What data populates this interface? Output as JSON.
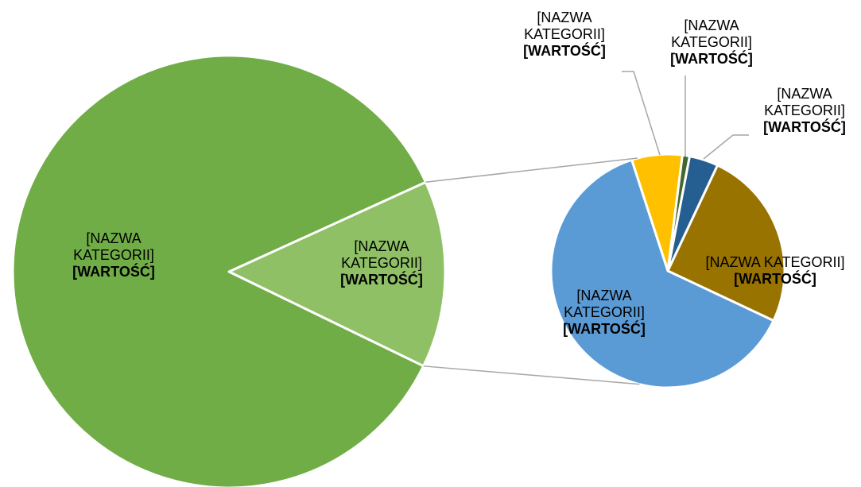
{
  "chart_data": [
    {
      "type": "pie",
      "categories": [
        "[NAZWA KATEGORII]",
        "[NAZWA KATEGORII]"
      ],
      "values": [
        14,
        86
      ],
      "value_labels": [
        "[WARTOŚĆ]",
        "[WARTOŚĆ]"
      ],
      "colors": [
        "#8fc065",
        "#70ad47"
      ]
    },
    {
      "type": "pie",
      "categories": [
        "[NAZWA KATEGORII]",
        "[NAZWA KATEGORII]",
        "[NAZWA KATEGORII]",
        "[NAZWA KATEGORII]",
        "[NAZWA KATEGORII]"
      ],
      "values": [
        7,
        1,
        4,
        25,
        63
      ],
      "value_labels": [
        "[WARTOŚĆ]",
        "[WARTOŚĆ]",
        "[WARTOŚĆ]",
        "[WARTOŚĆ]",
        "[WARTOŚĆ]"
      ],
      "colors": [
        "#ffc000",
        "#43682b",
        "#255e91",
        "#997300",
        "#5b9bd5"
      ]
    }
  ]
}
